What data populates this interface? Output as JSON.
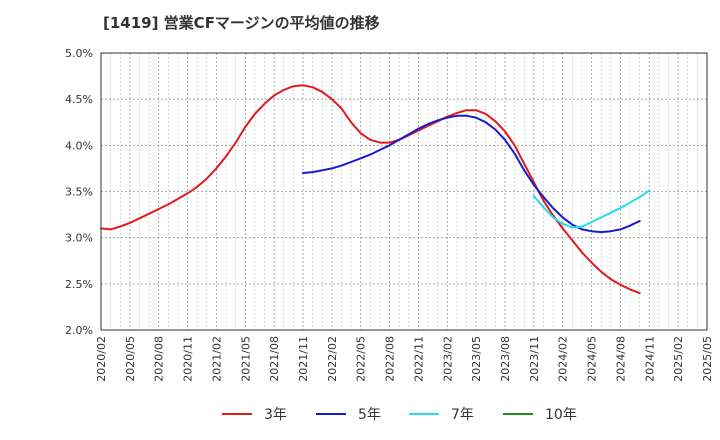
{
  "chart_data": {
    "type": "line",
    "title": "[1419]  営業CFマージンの平均値の推移",
    "xlabel": "",
    "ylabel": "",
    "ylim": [
      2.0,
      5.0
    ],
    "y_ticks": [
      "5.0%",
      "4.5%",
      "4.0%",
      "3.5%",
      "3.0%",
      "2.5%",
      "2.0%"
    ],
    "x_ticks": [
      "2020/02",
      "2020/05",
      "2020/08",
      "2020/11",
      "2021/02",
      "2021/05",
      "2021/08",
      "2021/11",
      "2022/02",
      "2022/05",
      "2022/08",
      "2022/11",
      "2023/02",
      "2023/05",
      "2023/08",
      "2023/11",
      "2024/02",
      "2024/05",
      "2024/08",
      "2024/11",
      "2025/02",
      "2025/05"
    ],
    "grid": true,
    "legend_position": "bottom",
    "series": [
      {
        "name": "3年",
        "color": "#e31a1c",
        "points": [
          [
            "2020/02",
            3.1
          ],
          [
            "2020/03",
            3.09
          ],
          [
            "2020/04",
            3.12
          ],
          [
            "2020/05",
            3.16
          ],
          [
            "2020/06",
            3.21
          ],
          [
            "2020/07",
            3.26
          ],
          [
            "2020/08",
            3.31
          ],
          [
            "2020/09",
            3.36
          ],
          [
            "2020/10",
            3.42
          ],
          [
            "2020/11",
            3.48
          ],
          [
            "2020/12",
            3.55
          ],
          [
            "2021/01",
            3.64
          ],
          [
            "2021/02",
            3.75
          ],
          [
            "2021/03",
            3.88
          ],
          [
            "2021/04",
            4.03
          ],
          [
            "2021/05",
            4.2
          ],
          [
            "2021/06",
            4.34
          ],
          [
            "2021/07",
            4.45
          ],
          [
            "2021/08",
            4.54
          ],
          [
            "2021/09",
            4.6
          ],
          [
            "2021/10",
            4.64
          ],
          [
            "2021/11",
            4.65
          ],
          [
            "2021/12",
            4.63
          ],
          [
            "2022/01",
            4.58
          ],
          [
            "2022/02",
            4.5
          ],
          [
            "2022/03",
            4.4
          ],
          [
            "2022/04",
            4.25
          ],
          [
            "2022/05",
            4.13
          ],
          [
            "2022/06",
            4.06
          ],
          [
            "2022/07",
            4.03
          ],
          [
            "2022/08",
            4.03
          ],
          [
            "2022/09",
            4.06
          ],
          [
            "2022/10",
            4.11
          ],
          [
            "2022/11",
            4.16
          ],
          [
            "2022/12",
            4.21
          ],
          [
            "2023/01",
            4.26
          ],
          [
            "2023/02",
            4.31
          ],
          [
            "2023/03",
            4.35
          ],
          [
            "2023/04",
            4.38
          ],
          [
            "2023/05",
            4.38
          ],
          [
            "2023/06",
            4.34
          ],
          [
            "2023/07",
            4.26
          ],
          [
            "2023/08",
            4.15
          ],
          [
            "2023/09",
            4.0
          ],
          [
            "2023/10",
            3.8
          ],
          [
            "2023/11",
            3.6
          ],
          [
            "2023/12",
            3.4
          ],
          [
            "2024/01",
            3.24
          ],
          [
            "2024/02",
            3.1
          ],
          [
            "2024/03",
            2.97
          ],
          [
            "2024/04",
            2.84
          ],
          [
            "2024/05",
            2.73
          ],
          [
            "2024/06",
            2.63
          ],
          [
            "2024/07",
            2.55
          ],
          [
            "2024/08",
            2.49
          ],
          [
            "2024/09",
            2.44
          ],
          [
            "2024/10",
            2.4
          ]
        ]
      },
      {
        "name": "5年",
        "color": "#1a1acd",
        "points": [
          [
            "2021/11",
            3.7
          ],
          [
            "2021/12",
            3.71
          ],
          [
            "2022/01",
            3.73
          ],
          [
            "2022/02",
            3.75
          ],
          [
            "2022/03",
            3.78
          ],
          [
            "2022/04",
            3.82
          ],
          [
            "2022/05",
            3.86
          ],
          [
            "2022/06",
            3.9
          ],
          [
            "2022/07",
            3.95
          ],
          [
            "2022/08",
            4.0
          ],
          [
            "2022/09",
            4.06
          ],
          [
            "2022/10",
            4.12
          ],
          [
            "2022/11",
            4.18
          ],
          [
            "2022/12",
            4.23
          ],
          [
            "2023/01",
            4.27
          ],
          [
            "2023/02",
            4.3
          ],
          [
            "2023/03",
            4.32
          ],
          [
            "2023/04",
            4.32
          ],
          [
            "2023/05",
            4.3
          ],
          [
            "2023/06",
            4.25
          ],
          [
            "2023/07",
            4.17
          ],
          [
            "2023/08",
            4.06
          ],
          [
            "2023/09",
            3.91
          ],
          [
            "2023/10",
            3.73
          ],
          [
            "2023/11",
            3.57
          ],
          [
            "2023/12",
            3.44
          ],
          [
            "2024/01",
            3.32
          ],
          [
            "2024/02",
            3.22
          ],
          [
            "2024/03",
            3.14
          ],
          [
            "2024/04",
            3.09
          ],
          [
            "2024/05",
            3.07
          ],
          [
            "2024/06",
            3.06
          ],
          [
            "2024/07",
            3.07
          ],
          [
            "2024/08",
            3.09
          ],
          [
            "2024/09",
            3.13
          ],
          [
            "2024/10",
            3.18
          ]
        ]
      },
      {
        "name": "7年",
        "color": "#20e0f0",
        "points": [
          [
            "2023/11",
            3.45
          ],
          [
            "2023/12",
            3.33
          ],
          [
            "2024/01",
            3.22
          ],
          [
            "2024/02",
            3.15
          ],
          [
            "2024/03",
            3.11
          ],
          [
            "2024/04",
            3.12
          ],
          [
            "2024/05",
            3.17
          ],
          [
            "2024/06",
            3.22
          ],
          [
            "2024/07",
            3.27
          ],
          [
            "2024/08",
            3.32
          ],
          [
            "2024/09",
            3.38
          ],
          [
            "2024/10",
            3.44
          ],
          [
            "2024/11",
            3.51
          ]
        ]
      },
      {
        "name": "10年",
        "color": "#1e8c1e",
        "points": []
      }
    ]
  }
}
